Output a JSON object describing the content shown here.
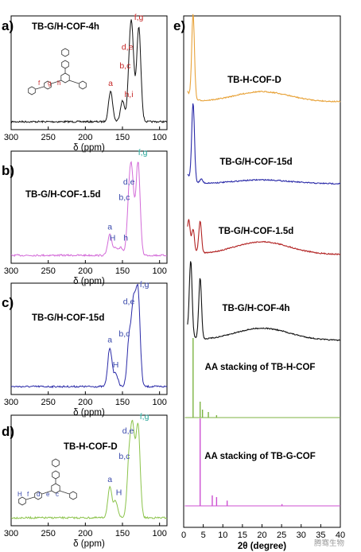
{
  "colors": {
    "tb_h_cof_d_xrd": "#e8a33a",
    "tb_g_h_cof_15d": "#2a2aa8",
    "tb_g_h_cof_1_5d": "#b22222",
    "tb_g_h_cof_4h": "#111111",
    "aa_tb_h_cof": "#7cb342",
    "aa_tb_g_cof": "#cc4fd1",
    "nmr_4h": "#111111",
    "nmr_1_5d": "#d36ad8",
    "nmr_15d": "#2a2aa8",
    "nmr_d": "#8bc34a",
    "label_red": "#c62828",
    "label_blue": "#3949ab",
    "label_teal": "#26a69a"
  },
  "chart_data": [
    {
      "type": "line",
      "panel": "a)",
      "title": "TB-G/H-COF-4h",
      "xlabel": "δ (ppm)",
      "x_ticks": [
        300,
        250,
        200,
        150,
        100
      ],
      "xlim": [
        300,
        90
      ],
      "x_reversed": true,
      "peaks": [
        {
          "label": "a",
          "x": 166,
          "height": 0.32
        },
        {
          "label": "h,i",
          "x": 150,
          "height": 0.22
        },
        {
          "label": "b,c",
          "x": 140,
          "height": 0.52
        },
        {
          "label": "d,e",
          "x": 137,
          "height": 0.72
        },
        {
          "label": "f,g",
          "x": 128,
          "height": 1.0
        }
      ],
      "peak_labels": [
        "f,g",
        "d,e",
        "b,c",
        "h,i",
        "a"
      ]
    },
    {
      "type": "line",
      "panel": "b)",
      "title": "TB-G/H-COF-1.5d",
      "xlabel": "δ (ppm)",
      "x_ticks": [
        300,
        250,
        200,
        150,
        100
      ],
      "xlim": [
        300,
        90
      ],
      "x_reversed": true,
      "peaks": [
        {
          "label": "a",
          "x": 167,
          "height": 0.22
        },
        {
          "label": "H",
          "x": 159,
          "height": 0.08
        },
        {
          "label": "h",
          "x": 152,
          "height": 0.08
        },
        {
          "label": "b,c",
          "x": 141,
          "height": 0.55
        },
        {
          "label": "d,e",
          "x": 137,
          "height": 0.72
        },
        {
          "label": "f,g",
          "x": 129,
          "height": 1.0
        }
      ],
      "peak_labels": [
        "f,g",
        "d,e",
        "b,c",
        "a",
        "H",
        "h"
      ]
    },
    {
      "type": "line",
      "panel": "c)",
      "title": "TB-G/H-COF-15d",
      "xlabel": "δ (ppm)",
      "x_ticks": [
        300,
        250,
        200,
        150,
        100
      ],
      "xlim": [
        300,
        90
      ],
      "x_reversed": true,
      "peaks": [
        {
          "label": "a",
          "x": 167,
          "height": 0.42
        },
        {
          "label": "H",
          "x": 159,
          "height": 0.14
        },
        {
          "label": "b,c",
          "x": 141,
          "height": 0.5
        },
        {
          "label": "d,e",
          "x": 135,
          "height": 0.85
        },
        {
          "label": "f,g",
          "x": 129,
          "height": 1.0
        }
      ],
      "peak_labels": [
        "d,e",
        "f,g",
        "b,c",
        "a",
        "H"
      ]
    },
    {
      "type": "line",
      "panel": "d)",
      "title": "TB-H-COF-D",
      "xlabel": "δ (ppm)",
      "x_ticks": [
        300,
        250,
        200,
        150,
        100
      ],
      "xlim": [
        300,
        90
      ],
      "x_reversed": true,
      "peaks": [
        {
          "label": "a",
          "x": 167,
          "height": 0.33
        },
        {
          "label": "H",
          "x": 159,
          "height": 0.18
        },
        {
          "label": "b,c",
          "x": 141,
          "height": 0.6
        },
        {
          "label": "d,e",
          "x": 136,
          "height": 0.88
        },
        {
          "label": "f,g",
          "x": 129,
          "height": 1.0
        }
      ],
      "peak_labels": [
        "d,e",
        "f,g",
        "b,c",
        "a",
        "H"
      ]
    },
    {
      "type": "line",
      "panel": "e)",
      "xlabel": "2θ (degree)",
      "x_ticks": [
        0,
        5,
        10,
        15,
        20,
        25,
        30,
        35,
        40
      ],
      "xlim": [
        0,
        40
      ],
      "series": [
        {
          "name": "TB-H-COF-D",
          "color_key": "tb_h_cof_d_xrd",
          "peaks": [
            {
              "x": 2.4,
              "h": 1.0
            }
          ],
          "hump": 0.12
        },
        {
          "name": "TB-G/H-COF-15d",
          "color_key": "tb_g_h_cof_15d",
          "peaks": [
            {
              "x": 2.4,
              "h": 1.0
            },
            {
              "x": 4.5,
              "h": 0.05
            }
          ],
          "hump": 0.05
        },
        {
          "name": "TB-G/H-COF-1.5d",
          "color_key": "tb_g_h_cof_1_5d",
          "peaks": [
            {
              "x": 1.3,
              "h": 0.45
            },
            {
              "x": 2.4,
              "h": 0.35
            },
            {
              "x": 4.2,
              "h": 0.5
            }
          ],
          "hump": 0.2
        },
        {
          "name": "TB-G/H-COF-4h",
          "color_key": "tb_g_h_cof_4h",
          "peaks": [
            {
              "x": 1.8,
              "h": 0.85
            },
            {
              "x": 4.2,
              "h": 0.7
            }
          ],
          "hump": 0.14
        },
        {
          "name": "AA stacking of TB-H-COF",
          "color_key": "aa_tb_h_cof",
          "sticks": [
            {
              "x": 2.4,
              "h": 1.0
            },
            {
              "x": 4.2,
              "h": 0.2
            },
            {
              "x": 4.8,
              "h": 0.1
            },
            {
              "x": 6.3,
              "h": 0.07
            },
            {
              "x": 8.4,
              "h": 0.03
            }
          ]
        },
        {
          "name": "AA stacking of TB-G-COF",
          "color_key": "aa_tb_g_cof",
          "sticks": [
            {
              "x": 4.2,
              "h": 1.0
            },
            {
              "x": 7.3,
              "h": 0.12
            },
            {
              "x": 8.4,
              "h": 0.1
            },
            {
              "x": 11.1,
              "h": 0.06
            },
            {
              "x": 25.1,
              "h": 0.02
            }
          ]
        }
      ]
    }
  ],
  "structure_labels": {
    "a": [
      "f",
      "g",
      "h"
    ],
    "d": [
      "H",
      "f",
      "d",
      "e",
      "c"
    ]
  },
  "watermark": "腾骞生物"
}
